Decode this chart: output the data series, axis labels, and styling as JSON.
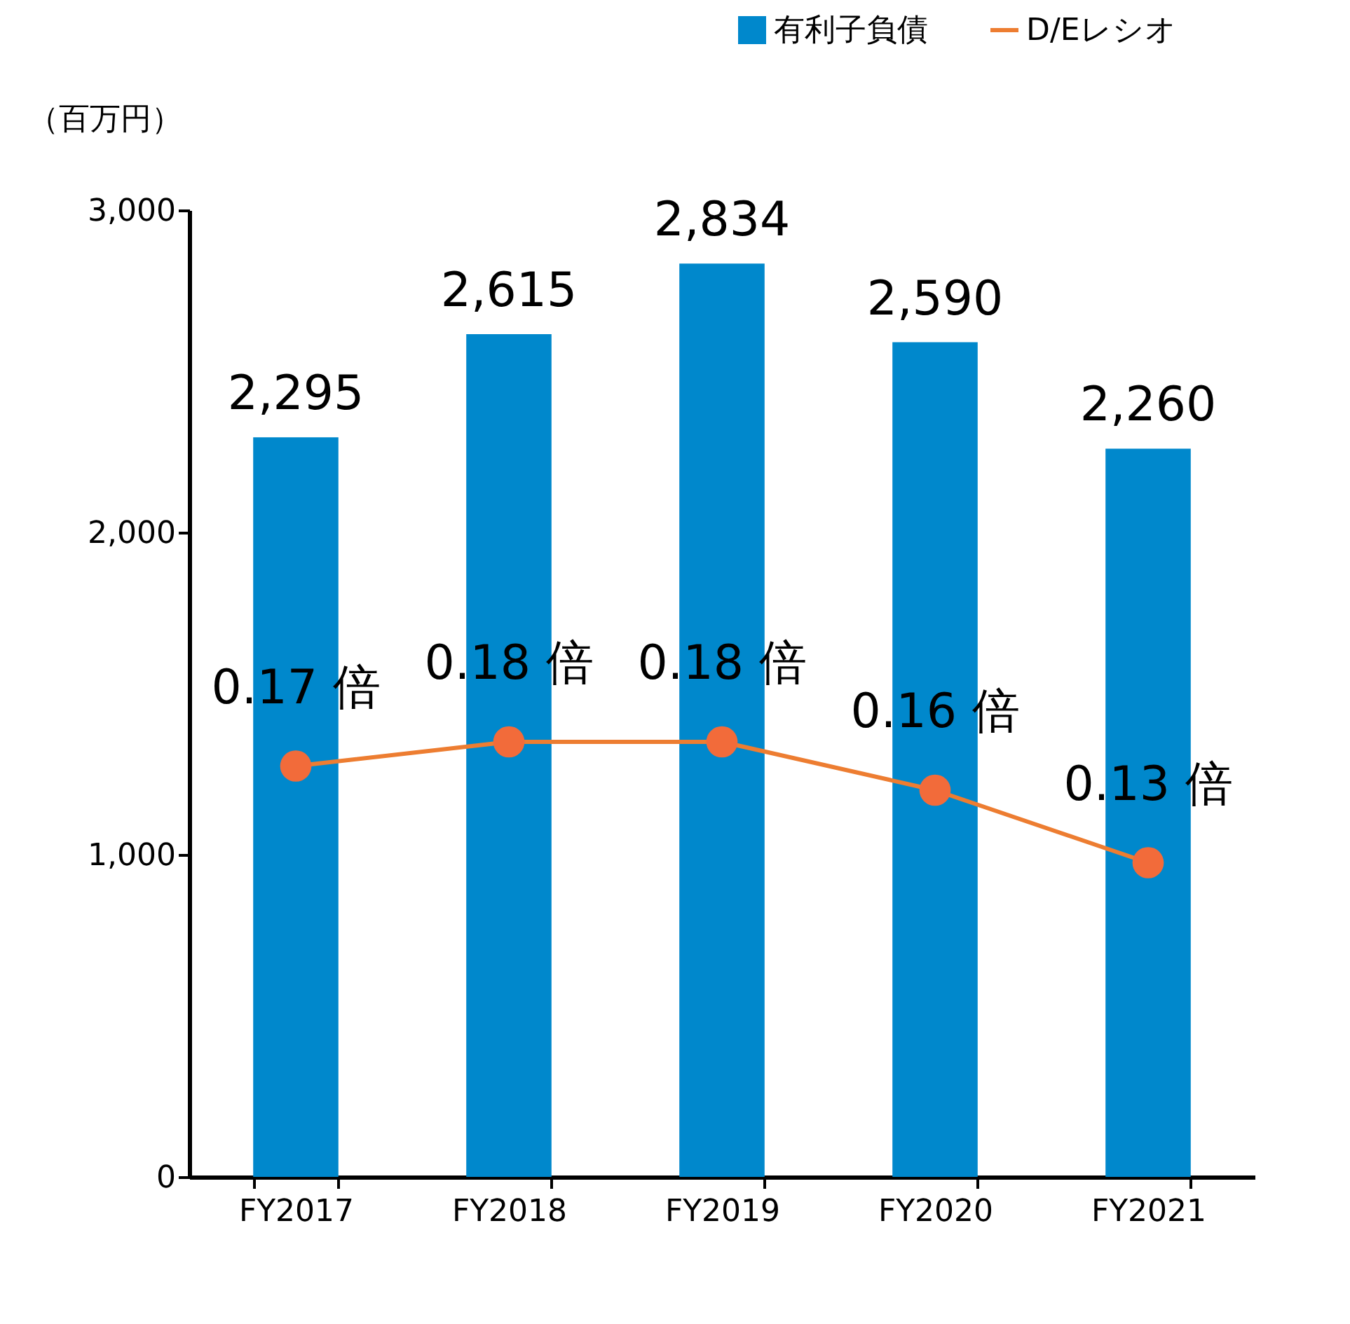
{
  "chart_data": {
    "type": "bar",
    "categories": [
      "FY2017",
      "FY2018",
      "FY2019",
      "FY2020",
      "FY2021"
    ],
    "ylabel": "（百万円）",
    "ylim": [
      0,
      3000
    ],
    "yticks": [
      {
        "value": 0,
        "label": "0"
      },
      {
        "value": 1000,
        "label": "1,000"
      },
      {
        "value": 2000,
        "label": "2,000"
      },
      {
        "value": 3000,
        "label": "3,000"
      }
    ],
    "y2lim": [
      0,
      0.4
    ],
    "tick_labels": "xy",
    "grid": false,
    "legend": "top right",
    "series": [
      {
        "name": "有利子負債",
        "type": "bar",
        "color": "#0088cc",
        "values": [
          2295,
          2615,
          2834,
          2590,
          2260
        ],
        "value_labels": [
          "2,295",
          "2,615",
          "2,834",
          "2,590",
          "2,260"
        ]
      },
      {
        "name": "D/Eレシオ",
        "type": "line",
        "axis": "y2",
        "color": "#ed7d31",
        "marker": "circle",
        "values": [
          0.17,
          0.18,
          0.18,
          0.16,
          0.13
        ],
        "value_labels": [
          "0.17 倍",
          "0.18 倍",
          "0.18 倍",
          "0.16 倍",
          "0.13 倍"
        ]
      }
    ]
  }
}
